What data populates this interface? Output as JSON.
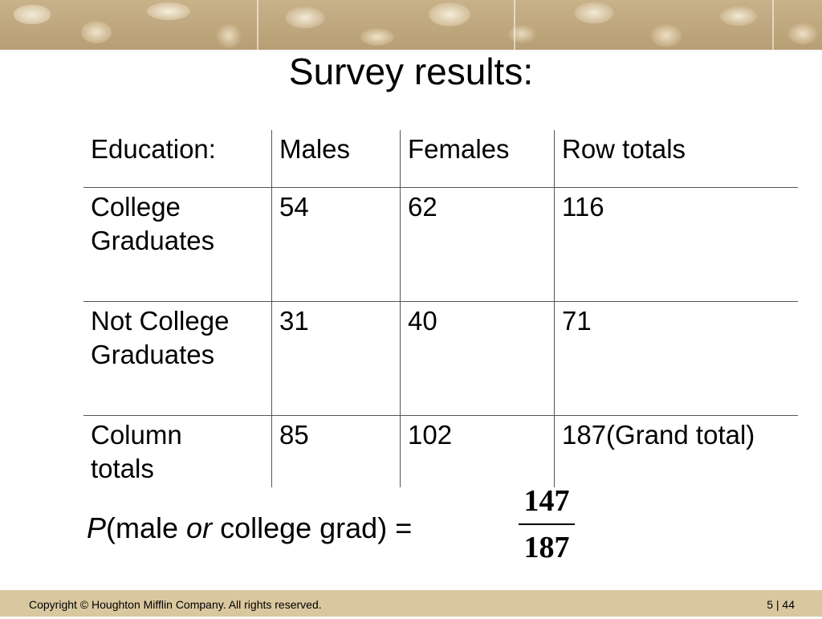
{
  "slide": {
    "title": "Survey results:"
  },
  "table": {
    "headers": [
      "Education:",
      "Males",
      "Females",
      "Row totals"
    ],
    "rows": [
      {
        "label_line1": "College",
        "label_line2": "Graduates",
        "males": "54",
        "females": "62",
        "total": "116"
      },
      {
        "label_line1": "Not College",
        "label_line2": "Graduates",
        "males": "31",
        "females": "40",
        "total": "71"
      },
      {
        "label_line1": "Column",
        "label_line2": "totals",
        "males": "85",
        "females": "102",
        "total": "187(Grand total)"
      }
    ]
  },
  "formula": {
    "p": "P",
    "open": "(male ",
    "or": "or",
    "rest": " college grad) =",
    "numerator": "147",
    "denominator": "187"
  },
  "footer": {
    "copyright": "Copyright © Houghton Mifflin Company.  All rights reserved.",
    "page": "5 | 44"
  },
  "colors": {
    "footer_bg": "#d9c89f",
    "rule": "#555555"
  }
}
